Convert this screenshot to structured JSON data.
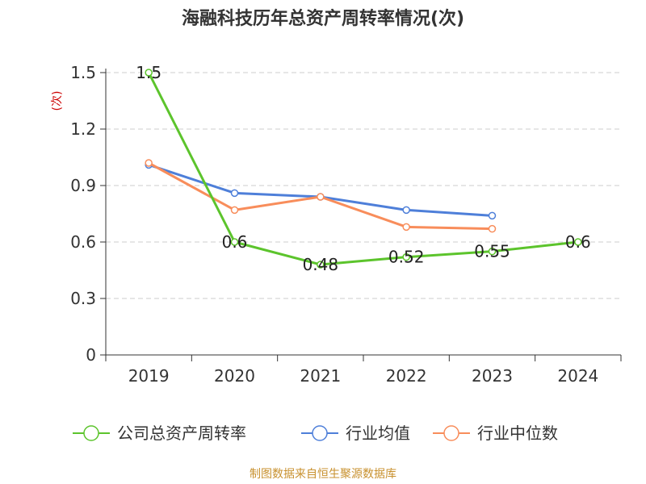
{
  "source": "制图数据来自恒生聚源数据库",
  "chart_data": {
    "type": "line",
    "title": "海融科技历年总资产周转率情况(次)",
    "xlabel": "",
    "ylabel": "(次)",
    "categories": [
      "2019",
      "2020",
      "2021",
      "2022",
      "2023",
      "2024"
    ],
    "ylim": [
      0,
      1.5
    ],
    "yticks": [
      "0",
      "0.3",
      "0.6",
      "0.9",
      "1.2",
      "1.5"
    ],
    "grid": true,
    "legend_position": "bottom",
    "series": [
      {
        "name": "公司总资产周转率",
        "color": "#5cc42c",
        "values": [
          1.5,
          0.6,
          0.48,
          0.52,
          0.55,
          0.6
        ],
        "labels": [
          "1.5",
          "0.6",
          "0.48",
          "0.52",
          "0.55",
          "0.6"
        ]
      },
      {
        "name": "行业均值",
        "color": "#4e7fd9",
        "values": [
          1.01,
          0.86,
          0.84,
          0.77,
          0.74,
          null
        ]
      },
      {
        "name": "行业中位数",
        "color": "#f88d5b",
        "values": [
          1.02,
          0.77,
          0.84,
          0.68,
          0.67,
          null
        ]
      }
    ]
  }
}
